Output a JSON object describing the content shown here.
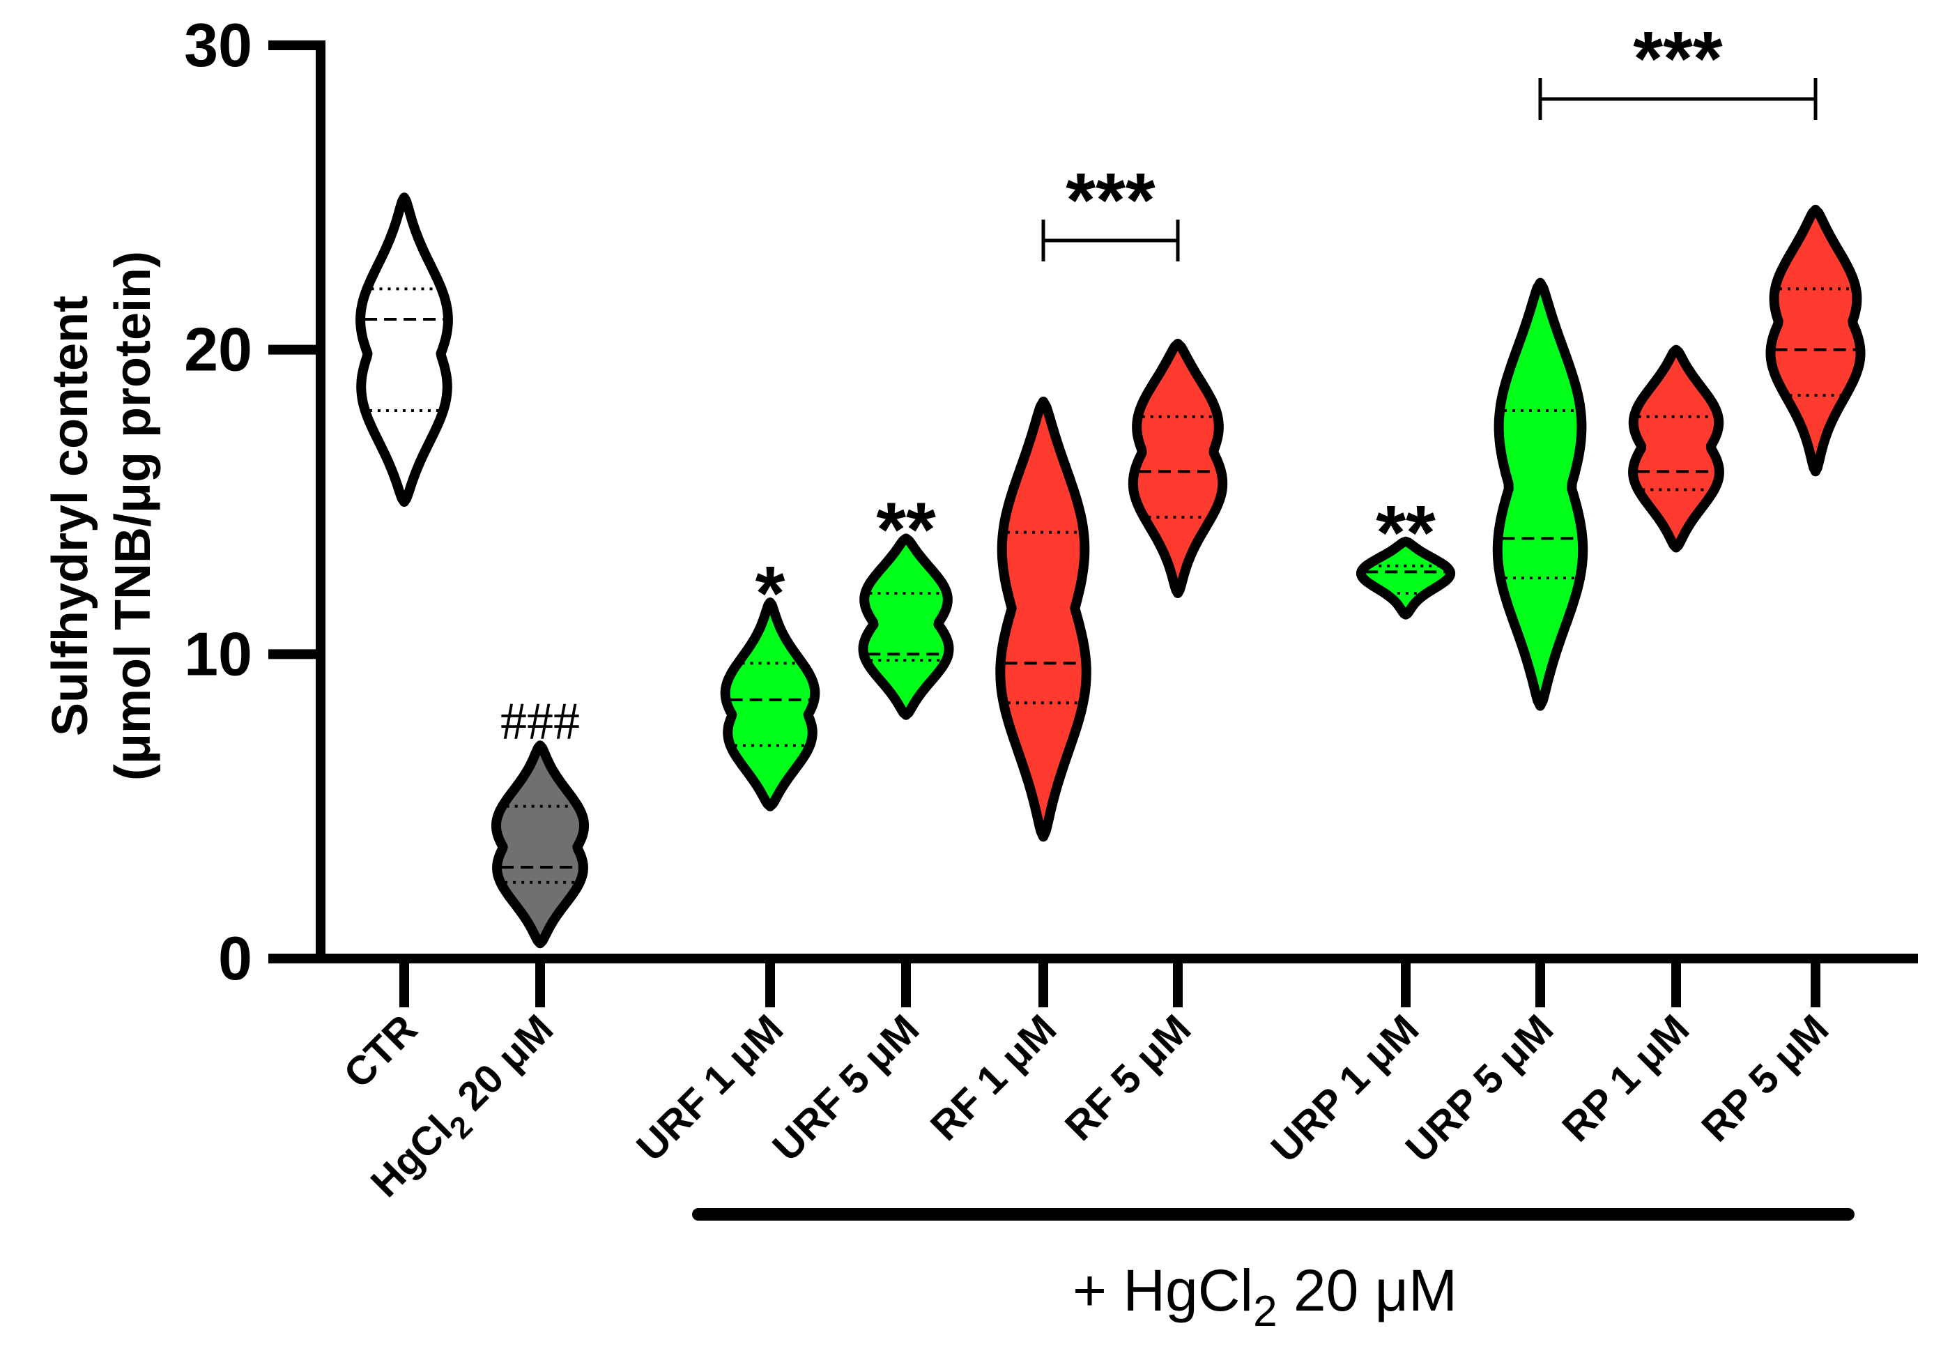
{
  "chart_data": {
    "type": "violin",
    "ylabel_line1": "Sulfhydryl content",
    "ylabel_line2": "(μmol TNB/μg protein)",
    "ylim": [
      0,
      30
    ],
    "yticks": [
      0,
      10,
      20,
      30
    ],
    "group_label_prefix": "+ HgCl",
    "group_label_sub": "2",
    "group_label_suffix": " 20 μM",
    "colors": {
      "ctr": "#ffffff",
      "hg": "#707070",
      "green": "#00ff19",
      "red": "#ff3b2f"
    },
    "groups": [
      {
        "label": "CTR",
        "color": "#ffffff",
        "min": 15,
        "max": 25,
        "q1": 18.0,
        "median": 21.0,
        "q3": 22.0,
        "wide": [
          21.2,
          18.5
        ],
        "sig": ""
      },
      {
        "label_main": "HgCl",
        "label_sub": "2",
        "label_rest": " 20 μM",
        "label": "HgCl2 20 μM",
        "color": "#707070",
        "min": 0.5,
        "max": 7,
        "q1": 2.5,
        "median": 3.0,
        "q3": 5.0,
        "wide": [
          2.8,
          4.5
        ],
        "sig": "###"
      },
      {
        "label": "URF 1 μM",
        "color": "#00ff19",
        "min": 5,
        "max": 11.7,
        "q1": 7.0,
        "median": 8.5,
        "q3": 9.7,
        "wide": [
          8.8,
          7.2
        ],
        "sig": "*"
      },
      {
        "label": "URF 5 μM",
        "color": "#00ff19",
        "min": 8,
        "max": 13.8,
        "q1": 9.8,
        "median": 10.0,
        "q3": 12.0,
        "wide": [
          10.0,
          12.0
        ],
        "sig": "**"
      },
      {
        "label": "RF 1 μM",
        "color": "#ff3b2f",
        "min": 4,
        "max": 18.3,
        "q1": 8.4,
        "median": 9.7,
        "q3": 14.0,
        "wide": [
          9.0,
          14.0
        ],
        "sig": ""
      },
      {
        "label": "RF 5 μM",
        "color": "#ff3b2f",
        "min": 12,
        "max": 20.2,
        "q1": 14.5,
        "median": 16.0,
        "q3": 17.8,
        "wide": [
          15.5,
          17.8
        ],
        "sig": ""
      },
      {
        "label": "URP 1 μM",
        "color": "#00ff19",
        "min": 11.3,
        "max": 13.7,
        "q1": 12.0,
        "median": 12.7,
        "q3": 12.9,
        "wide": [
          12.7
        ],
        "sig": "**"
      },
      {
        "label": "URP 5 μM",
        "color": "#00ff19",
        "min": 8.3,
        "max": 22.2,
        "q1": 12.5,
        "median": 13.8,
        "q3": 18.0,
        "wide": [
          13.0,
          18.0
        ],
        "sig": ""
      },
      {
        "label": "RP 1 μM",
        "color": "#ff3b2f",
        "min": 13.5,
        "max": 20.0,
        "q1": 15.4,
        "median": 16.0,
        "q3": 17.8,
        "wide": [
          15.8,
          17.8
        ],
        "sig": ""
      },
      {
        "label": "RP 5 μM",
        "color": "#ff3b2f",
        "min": 16,
        "max": 24.6,
        "q1": 18.5,
        "median": 20.0,
        "q3": 22.0,
        "wide": [
          19.8,
          22.0
        ],
        "sig": ""
      }
    ],
    "brackets": [
      {
        "from": 4,
        "to": 5,
        "label": "***"
      },
      {
        "from": 7,
        "to": 9,
        "label": "***"
      }
    ]
  }
}
